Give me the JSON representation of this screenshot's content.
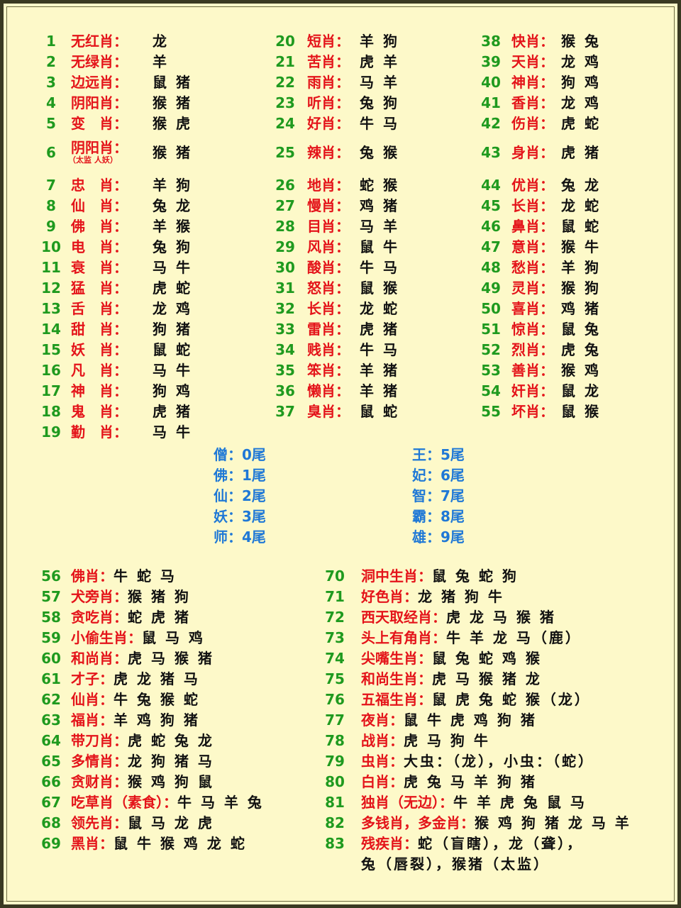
{
  "top_columns": [
    {
      "rows": [
        {
          "number": 1,
          "label": "无红肖：",
          "value": "龙"
        },
        {
          "number": 2,
          "label": "无绿肖：",
          "value": "羊"
        },
        {
          "number": 3,
          "label": "边远肖：",
          "value": "鼠 猪"
        },
        {
          "number": 4,
          "label": "阴阳肖：",
          "value": "猴 猪"
        },
        {
          "number": 5,
          "label": "变　肖：",
          "value": "猴 虎"
        },
        {
          "number": 6,
          "label": "阴阳肖：",
          "note": "（太监 人妖）",
          "value": "猴 猪"
        },
        {
          "number": 7,
          "label": "忠　肖：",
          "value": "羊 狗"
        },
        {
          "number": 8,
          "label": "仙　肖：",
          "value": "兔 龙"
        },
        {
          "number": 9,
          "label": "佛　肖：",
          "value": "羊 猴"
        },
        {
          "number": 10,
          "label": "电　肖：",
          "value": "兔 狗"
        },
        {
          "number": 11,
          "label": "衰　肖：",
          "value": "马 牛"
        },
        {
          "number": 12,
          "label": "猛　肖：",
          "value": "虎 蛇"
        },
        {
          "number": 13,
          "label": "舌　肖：",
          "value": "龙 鸡"
        },
        {
          "number": 14,
          "label": "甜　肖：",
          "value": "狗 猪"
        },
        {
          "number": 15,
          "label": "妖　肖：",
          "value": "鼠 蛇"
        },
        {
          "number": 16,
          "label": "凡　肖：",
          "value": "马 牛"
        },
        {
          "number": 17,
          "label": "神　肖：",
          "value": "狗 鸡"
        },
        {
          "number": 18,
          "label": "鬼　肖：",
          "value": "虎 猪"
        },
        {
          "number": 19,
          "label": "勤　肖：",
          "value": "马 牛"
        }
      ]
    },
    {
      "rows": [
        {
          "number": 20,
          "label": "短肖：",
          "value": "羊 狗"
        },
        {
          "number": 21,
          "label": "苦肖：",
          "value": "虎 羊"
        },
        {
          "number": 22,
          "label": "雨肖：",
          "value": "马 羊"
        },
        {
          "number": 23,
          "label": "听肖：",
          "value": "兔 狗"
        },
        {
          "number": 24,
          "label": "好肖：",
          "value": "牛 马"
        },
        {
          "number": 25,
          "label": "辣肖：",
          "value": "兔 猴"
        },
        {
          "number": 26,
          "label": "地肖：",
          "value": "蛇 猴"
        },
        {
          "number": 27,
          "label": "慢肖：",
          "value": "鸡 猪"
        },
        {
          "number": 28,
          "label": "目肖：",
          "value": "马 羊"
        },
        {
          "number": 29,
          "label": "风肖：",
          "value": "鼠 牛"
        },
        {
          "number": 30,
          "label": "酸肖：",
          "value": "牛 马"
        },
        {
          "number": 31,
          "label": "怒肖：",
          "value": "鼠 猴"
        },
        {
          "number": 32,
          "label": "长肖：",
          "value": "龙 蛇"
        },
        {
          "number": 33,
          "label": "雷肖：",
          "value": "虎 猪"
        },
        {
          "number": 34,
          "label": "贱肖：",
          "value": "牛 马"
        },
        {
          "number": 35,
          "label": "笨肖：",
          "value": "羊 猪"
        },
        {
          "number": 36,
          "label": "懒肖：",
          "value": "羊 猪"
        },
        {
          "number": 37,
          "label": "臭肖：",
          "value": "鼠 蛇"
        }
      ]
    },
    {
      "rows": [
        {
          "number": 38,
          "label": "快肖：",
          "value": "猴 兔"
        },
        {
          "number": 39,
          "label": "天肖：",
          "value": "龙 鸡"
        },
        {
          "number": 40,
          "label": "神肖：",
          "value": "狗 鸡"
        },
        {
          "number": 41,
          "label": "香肖：",
          "value": "龙 鸡"
        },
        {
          "number": 42,
          "label": "伤肖：",
          "value": "虎 蛇"
        },
        {
          "number": 43,
          "label": "身肖：",
          "value": "虎 猪"
        },
        {
          "number": 44,
          "label": "优肖：",
          "value": "兔 龙"
        },
        {
          "number": 45,
          "label": "长肖：",
          "value": "龙 蛇"
        },
        {
          "number": 46,
          "label": "鼻肖：",
          "value": "鼠 蛇"
        },
        {
          "number": 47,
          "label": "意肖：",
          "value": "猴 牛"
        },
        {
          "number": 48,
          "label": "愁肖：",
          "value": "羊 狗"
        },
        {
          "number": 49,
          "label": "灵肖：",
          "value": "猴 狗"
        },
        {
          "number": 50,
          "label": "喜肖：",
          "value": "鸡 猪"
        },
        {
          "number": 51,
          "label": "惊肖：",
          "value": "鼠 兔"
        },
        {
          "number": 52,
          "label": "烈肖：",
          "value": "虎 兔"
        },
        {
          "number": 53,
          "label": "善肖：",
          "value": "猴 鸡"
        },
        {
          "number": 54,
          "label": "奸肖：",
          "value": "鼠 龙"
        },
        {
          "number": 55,
          "label": "坏肖：",
          "value": "鼠 猴"
        }
      ]
    }
  ],
  "tails": [
    [
      "僧：0尾",
      "佛：1尾",
      "仙：2尾",
      "妖：3尾",
      "师：4尾"
    ],
    [
      "王：5尾",
      "妃：6尾",
      "智：7尾",
      "霸：8尾",
      "雄：9尾"
    ]
  ],
  "bottom_columns": [
    {
      "rows": [
        {
          "number": 56,
          "label": "佛肖：",
          "value": "牛 蛇 马"
        },
        {
          "number": 57,
          "label": "犬旁肖：",
          "value": "猴 猪 狗"
        },
        {
          "number": 58,
          "label": "贪吃肖：",
          "value": "蛇 虎 猪"
        },
        {
          "number": 59,
          "label": "小偷生肖：",
          "value": "鼠 马 鸡"
        },
        {
          "number": 60,
          "label": "和尚肖：",
          "value": "虎 马 猴 猪"
        },
        {
          "number": 61,
          "label": "才子：",
          "value": "虎 龙 猪 马"
        },
        {
          "number": 62,
          "label": "仙肖：",
          "value": "牛 兔 猴 蛇"
        },
        {
          "number": 63,
          "label": "福肖：",
          "value": "羊 鸡 狗 猪"
        },
        {
          "number": 64,
          "label": "带刀肖：",
          "value": "虎 蛇 兔 龙"
        },
        {
          "number": 65,
          "label": "多情肖：",
          "value": "龙 狗 猪 马"
        },
        {
          "number": 66,
          "label": "贪财肖：",
          "value": "猴 鸡 狗 鼠"
        },
        {
          "number": 67,
          "label": "吃草肖（素食）：",
          "value": "牛 马 羊 兔"
        },
        {
          "number": 68,
          "label": "领先肖：",
          "value": "鼠 马 龙 虎"
        },
        {
          "number": 69,
          "label": "黑肖：",
          "value": "鼠 牛 猴 鸡 龙 蛇"
        }
      ]
    },
    {
      "rows": [
        {
          "number": 70,
          "label": "洞中生肖：",
          "value": "鼠 兔 蛇 狗"
        },
        {
          "number": 71,
          "label": "好色肖：",
          "value": "龙 猪 狗 牛"
        },
        {
          "number": 72,
          "label": "西天取经肖：",
          "value": "虎 龙 马 猴 猪"
        },
        {
          "number": 73,
          "label": "头上有角肖：",
          "value": "牛 羊 龙 马（鹿）"
        },
        {
          "number": 74,
          "label": "尖嘴生肖：",
          "value": "鼠 兔 蛇 鸡 猴"
        },
        {
          "number": 75,
          "label": "和尚生肖：",
          "value": "虎 马 猴 猪 龙"
        },
        {
          "number": 76,
          "label": "五福生肖：",
          "value": "鼠 虎 兔 蛇 猴（龙）"
        },
        {
          "number": 77,
          "label": "夜肖：",
          "value": "鼠 牛 虎 鸡 狗 猪"
        },
        {
          "number": 78,
          "label": "战肖：",
          "value": "虎 马 狗 牛"
        },
        {
          "number": 79,
          "label": "虫肖：",
          "value": "大虫：（龙），小虫：（蛇）"
        },
        {
          "number": 80,
          "label": "白肖：",
          "value": "虎 兔 马 羊 狗 猪"
        },
        {
          "number": 81,
          "label": "独肖（无边）：",
          "value": "牛 羊 虎 兔 鼠 马"
        },
        {
          "number": 82,
          "label": "多钱肖，多金肖：",
          "value": "猴 鸡 狗 猪 龙 马 羊"
        },
        {
          "number": 83,
          "label": "残疾肖：",
          "value": [
            "蛇（盲瞎），龙（聋），",
            "兔（唇裂），猴猪（太监）"
          ]
        }
      ]
    }
  ]
}
